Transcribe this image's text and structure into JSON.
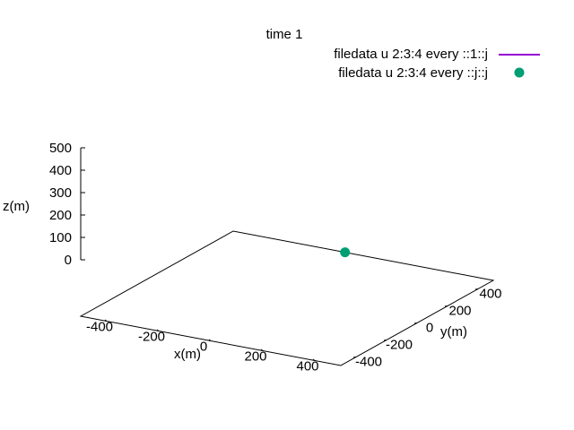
{
  "chart_data": {
    "type": "scatter",
    "projection": "3d",
    "title": "time 1",
    "xlabel": "x(m)",
    "ylabel": "y(m)",
    "zlabel": "z(m)",
    "xlim": [
      -500,
      500
    ],
    "ylim": [
      -500,
      500
    ],
    "zlim": [
      0,
      500
    ],
    "x_ticks": [
      "-400",
      "-200",
      "0",
      "200",
      "400"
    ],
    "y_ticks": [
      "-400",
      "-200",
      "0",
      "200",
      "400"
    ],
    "z_ticks": [
      "0",
      "100",
      "200",
      "300",
      "400",
      "500"
    ],
    "grid": false,
    "legend_position": "top-right",
    "series": [
      {
        "name": "filedata u 2:3:4 every ::1::j",
        "style": "line",
        "color": "#9400d3",
        "points": []
      },
      {
        "name": "filedata u 2:3:4 every ::j::j",
        "style": "points",
        "color": "#009e73",
        "points": [
          {
            "x": -70,
            "y": 500,
            "z": 0
          }
        ]
      }
    ]
  }
}
